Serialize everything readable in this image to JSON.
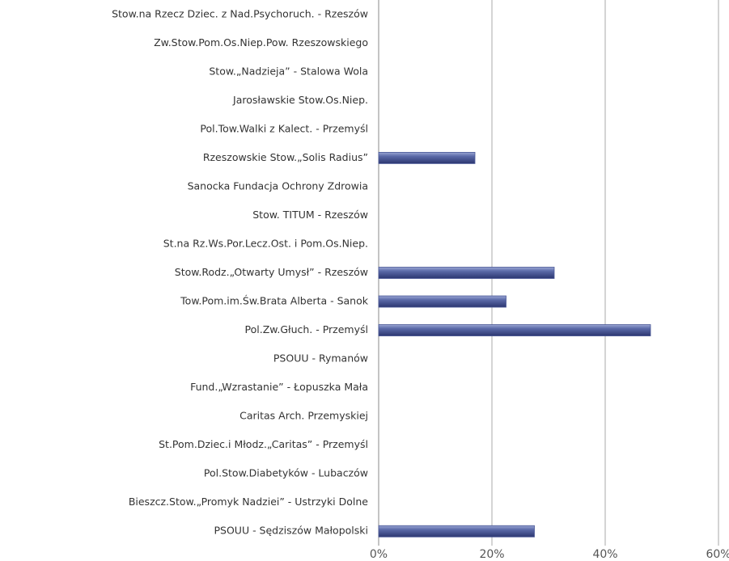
{
  "chart_data": {
    "type": "bar",
    "orientation": "horizontal",
    "categories": [
      "Stow.na Rzecz Dziec. z Nad.Psychoruch. - Rzeszów",
      "Zw.Stow.Pom.Os.Niep.Pow. Rzeszowskiego",
      "Stow.„Nadzieja” - Stalowa Wola",
      "Jarosławskie Stow.Os.Niep.",
      "Pol.Tow.Walki z Kalect. - Przemyśl",
      "Rzeszowskie Stow.„Solis Radius”",
      "Sanocka Fundacja Ochrony Zdrowia",
      "Stow. TITUM - Rzeszów",
      "St.na Rz.Ws.Por.Lecz.Ost. i Pom.Os.Niep.",
      "Stow.Rodz.„Otwarty Umysł” - Rzeszów",
      "Tow.Pom.im.Św.Brata Alberta - Sanok",
      "Pol.Zw.Głuch. - Przemyśl",
      "PSOUU - Rymanów",
      "Fund.„Wzrastanie” - Łopuszka Mała",
      "Caritas Arch. Przemyskiej",
      "St.Pom.Dziec.i Młodz.„Caritas” - Przemyśl",
      "Pol.Stow.Diabetyków - Lubaczów",
      "Bieszcz.Stow.„Promyk Nadziei” - Ustrzyki Dolne",
      "PSOUU - Sędziszów Małopolski"
    ],
    "values": [
      0,
      0,
      0,
      0,
      0,
      17,
      0,
      0,
      0,
      31,
      22.5,
      48,
      0,
      0,
      0,
      0,
      0,
      0,
      27.5
    ],
    "color": "#4a5896",
    "xlim": [
      0,
      60
    ],
    "xticks": [
      {
        "value": 0,
        "label": "0%"
      },
      {
        "value": 20,
        "label": "20%"
      },
      {
        "value": 40,
        "label": "40%"
      },
      {
        "value": 60,
        "label": "60%"
      }
    ],
    "grid": true
  }
}
